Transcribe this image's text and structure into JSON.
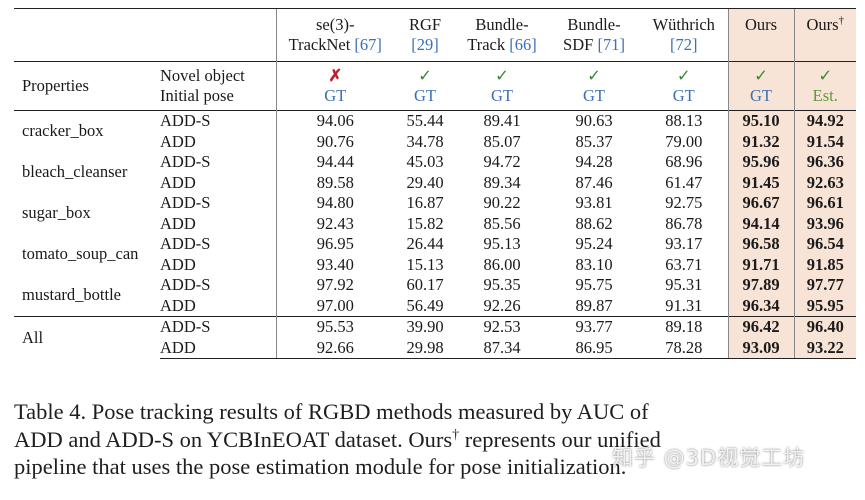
{
  "header": {
    "methods": [
      {
        "name_lines": [
          "se(3)-",
          "TrackNet"
        ],
        "cite": "[67]",
        "novel": "✗",
        "pose": "GT"
      },
      {
        "name_lines": [
          "RGF",
          ""
        ],
        "cite": "[29]",
        "novel": "✓",
        "pose": "GT"
      },
      {
        "name_lines": [
          "Bundle-",
          "Track"
        ],
        "cite": "[66]",
        "novel": "✓",
        "pose": "GT"
      },
      {
        "name_lines": [
          "Bundle-",
          "SDF"
        ],
        "cite": "[71]",
        "novel": "✓",
        "pose": "GT"
      },
      {
        "name_lines": [
          "Wüthrich",
          ""
        ],
        "cite": "[72]",
        "novel": "✓",
        "pose": "GT"
      },
      {
        "name_lines": [
          "Ours",
          ""
        ],
        "cite": "",
        "novel": "✓",
        "pose": "GT"
      },
      {
        "name_lines": [
          "Ours",
          ""
        ],
        "cite": "†",
        "novel": "✓",
        "pose": "Est."
      }
    ],
    "properties_label": "Properties",
    "novel_object_label": "Novel object",
    "initial_pose_label": "Initial pose"
  },
  "rows": [
    {
      "object": "cracker_box",
      "metric": "ADD-S",
      "values": [
        "94.06",
        "55.44",
        "89.41",
        "90.63",
        "88.13",
        "95.10",
        "94.92"
      ]
    },
    {
      "object": "",
      "metric": "ADD",
      "values": [
        "90.76",
        "34.78",
        "85.07",
        "85.37",
        "79.00",
        "91.32",
        "91.54"
      ]
    },
    {
      "object": "bleach_cleanser",
      "metric": "ADD-S",
      "values": [
        "94.44",
        "45.03",
        "94.72",
        "94.28",
        "68.96",
        "95.96",
        "96.36"
      ]
    },
    {
      "object": "",
      "metric": "ADD",
      "values": [
        "89.58",
        "29.40",
        "89.34",
        "87.46",
        "61.47",
        "91.45",
        "92.63"
      ]
    },
    {
      "object": "sugar_box",
      "metric": "ADD-S",
      "values": [
        "94.80",
        "16.87",
        "90.22",
        "93.81",
        "92.75",
        "96.67",
        "96.61"
      ]
    },
    {
      "object": "",
      "metric": "ADD",
      "values": [
        "92.43",
        "15.82",
        "85.56",
        "88.62",
        "86.78",
        "94.14",
        "93.96"
      ]
    },
    {
      "object": "tomato_soup_can",
      "metric": "ADD-S",
      "values": [
        "96.95",
        "26.44",
        "95.13",
        "95.24",
        "93.17",
        "96.58",
        "96.54"
      ]
    },
    {
      "object": "",
      "metric": "ADD",
      "values": [
        "93.40",
        "15.13",
        "86.00",
        "83.10",
        "63.71",
        "91.71",
        "91.85"
      ]
    },
    {
      "object": "mustard_bottle",
      "metric": "ADD-S",
      "values": [
        "97.92",
        "60.17",
        "95.35",
        "95.75",
        "95.31",
        "97.89",
        "97.77"
      ]
    },
    {
      "object": "",
      "metric": "ADD",
      "values": [
        "97.00",
        "56.49",
        "92.26",
        "89.87",
        "91.31",
        "96.34",
        "95.95"
      ]
    }
  ],
  "all_rows": [
    {
      "object": "All",
      "metric": "ADD-S",
      "values": [
        "95.53",
        "39.90",
        "92.53",
        "93.77",
        "89.18",
        "96.42",
        "96.40"
      ]
    },
    {
      "object": "",
      "metric": "ADD",
      "values": [
        "92.66",
        "29.98",
        "87.34",
        "86.95",
        "78.28",
        "93.09",
        "93.22"
      ]
    }
  ],
  "caption": {
    "line1": "Table 4.  Pose tracking results of RGBD methods measured by AUC of",
    "line2_a": "ADD and ADD-S on YCBInEOAT dataset. Ours",
    "line2_sup": "†",
    "line2_b": " represents our unified",
    "line3": "pipeline that uses the pose estimation module for pose initialization."
  },
  "watermark": "知乎 @3D视觉工坊"
}
